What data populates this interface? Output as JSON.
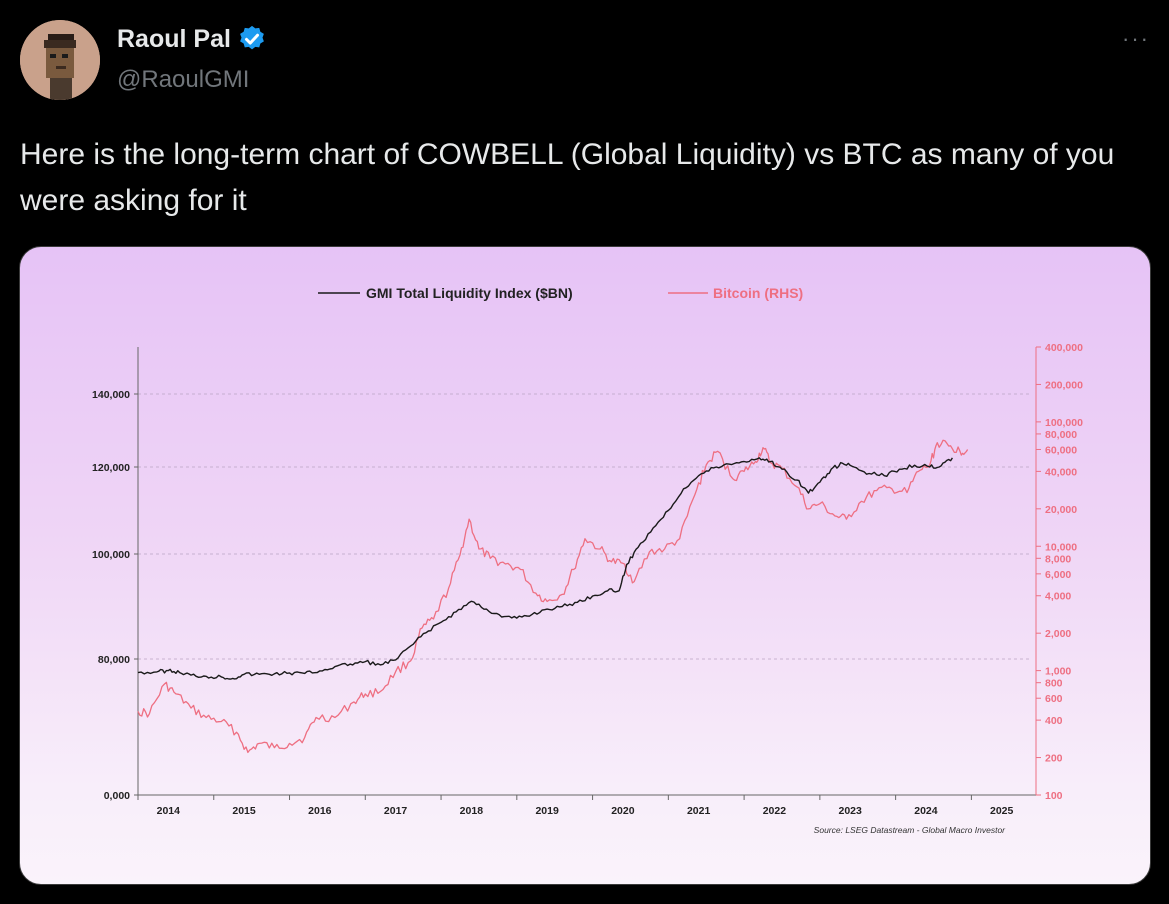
{
  "tweet": {
    "display_name": "Raoul Pal",
    "handle": "@RaoulGMI",
    "more_label": "···",
    "text": "Here is the long-term chart of COWBELL (Global Liquidity) vs BTC as many of you were asking for it"
  },
  "colors": {
    "gmi_line": "#1a1a1a",
    "btc_line": "#ee6f82",
    "verified": "#1d9bf0"
  },
  "chart_data": {
    "type": "line",
    "legend": [
      "GMI Total Liquidity Index ($BN)",
      "Bitcoin (RHS)"
    ],
    "source": "Source: LSEG Datastream - Global Macro Investor",
    "x_ticks": [
      "2014",
      "2015",
      "2016",
      "2017",
      "2018",
      "2019",
      "2020",
      "2021",
      "2022",
      "2023",
      "2024",
      "2025"
    ],
    "x_range": [
      2013.6,
      2025.4
    ],
    "left_axis": {
      "ticks": [
        {
          "v": 0,
          "label": "0,000"
        },
        {
          "v": 80000,
          "label": "80,000"
        },
        {
          "v": 100000,
          "label": "100,000"
        },
        {
          "v": 120000,
          "label": "120,000"
        },
        {
          "v": 140000,
          "label": "140,000"
        }
      ]
    },
    "right_axis": {
      "scale": "log",
      "range": [
        100,
        400000
      ],
      "ticks": [
        {
          "v": 100,
          "label": "100"
        },
        {
          "v": 200,
          "label": "200"
        },
        {
          "v": 400,
          "label": "400"
        },
        {
          "v": 600,
          "label": "600"
        },
        {
          "v": 800,
          "label": "800"
        },
        {
          "v": 1000,
          "label": "1,000"
        },
        {
          "v": 2000,
          "label": "2,000"
        },
        {
          "v": 4000,
          "label": "4,000"
        },
        {
          "v": 6000,
          "label": "6,000"
        },
        {
          "v": 8000,
          "label": "8,000"
        },
        {
          "v": 10000,
          "label": "10,000"
        },
        {
          "v": 20000,
          "label": "20,000"
        },
        {
          "v": 40000,
          "label": "40,000"
        },
        {
          "v": 60000,
          "label": "60,000"
        },
        {
          "v": 80000,
          "label": "80,000"
        },
        {
          "v": 100000,
          "label": "100,000"
        },
        {
          "v": 200000,
          "label": "200,000"
        },
        {
          "v": 400000,
          "label": "400,000"
        }
      ]
    },
    "series": [
      {
        "name": "GMI Total Liquidity Index ($BN)",
        "axis": "left",
        "points": [
          [
            2013.6,
            72000
          ],
          [
            2013.85,
            72400
          ],
          [
            2014.0,
            73200
          ],
          [
            2014.15,
            72000
          ],
          [
            2014.3,
            70500
          ],
          [
            2014.5,
            69800
          ],
          [
            2014.7,
            69500
          ],
          [
            2014.85,
            68600
          ],
          [
            2015.0,
            71000
          ],
          [
            2015.2,
            71000
          ],
          [
            2015.4,
            71300
          ],
          [
            2015.6,
            71800
          ],
          [
            2015.8,
            71500
          ],
          [
            2016.0,
            73000
          ],
          [
            2016.2,
            75500
          ],
          [
            2016.4,
            77000
          ],
          [
            2016.6,
            78500
          ],
          [
            2016.8,
            76500
          ],
          [
            2017.0,
            79500
          ],
          [
            2017.2,
            82500
          ],
          [
            2017.4,
            85000
          ],
          [
            2017.6,
            87000
          ],
          [
            2017.8,
            89000
          ],
          [
            2018.0,
            91000
          ],
          [
            2018.2,
            89500
          ],
          [
            2018.4,
            88000
          ],
          [
            2018.6,
            87800
          ],
          [
            2018.8,
            88500
          ],
          [
            2019.0,
            89500
          ],
          [
            2019.2,
            90000
          ],
          [
            2019.4,
            90800
          ],
          [
            2019.6,
            92000
          ],
          [
            2019.8,
            93000
          ],
          [
            2019.95,
            93000
          ],
          [
            2020.05,
            98000
          ],
          [
            2020.2,
            101500
          ],
          [
            2020.4,
            106000
          ],
          [
            2020.6,
            110000
          ],
          [
            2020.8,
            115000
          ],
          [
            2021.0,
            118000
          ],
          [
            2021.2,
            119800
          ],
          [
            2021.4,
            120800
          ],
          [
            2021.6,
            121500
          ],
          [
            2021.8,
            122500
          ],
          [
            2021.95,
            121500
          ],
          [
            2022.1,
            119500
          ],
          [
            2022.3,
            117000
          ],
          [
            2022.45,
            114000
          ],
          [
            2022.6,
            116500
          ],
          [
            2022.75,
            119500
          ],
          [
            2022.9,
            121000
          ],
          [
            2023.05,
            120000
          ],
          [
            2023.25,
            118500
          ],
          [
            2023.45,
            118000
          ],
          [
            2023.65,
            119500
          ],
          [
            2023.85,
            120500
          ],
          [
            2024.05,
            120000
          ],
          [
            2024.2,
            120300
          ],
          [
            2024.35,
            122500
          ]
        ]
      },
      {
        "name": "Bitcoin (RHS)",
        "axis": "right",
        "points": [
          [
            2013.6,
            470
          ],
          [
            2013.75,
            450
          ],
          [
            2013.95,
            780
          ],
          [
            2014.1,
            650
          ],
          [
            2014.3,
            500
          ],
          [
            2014.5,
            420
          ],
          [
            2014.7,
            390
          ],
          [
            2014.9,
            320
          ],
          [
            2015.05,
            220
          ],
          [
            2015.2,
            260
          ],
          [
            2015.4,
            240
          ],
          [
            2015.6,
            260
          ],
          [
            2015.8,
            290
          ],
          [
            2015.95,
            420
          ],
          [
            2016.2,
            420
          ],
          [
            2016.45,
            560
          ],
          [
            2016.6,
            650
          ],
          [
            2016.8,
            680
          ],
          [
            2017.0,
            980
          ],
          [
            2017.2,
            1200
          ],
          [
            2017.35,
            2200
          ],
          [
            2017.5,
            2600
          ],
          [
            2017.7,
            4600
          ],
          [
            2017.85,
            8500
          ],
          [
            2017.97,
            16500
          ],
          [
            2018.1,
            9500
          ],
          [
            2018.25,
            8000
          ],
          [
            2018.45,
            7200
          ],
          [
            2018.65,
            6500
          ],
          [
            2018.85,
            4200
          ],
          [
            2019.0,
            3600
          ],
          [
            2019.2,
            4100
          ],
          [
            2019.35,
            6500
          ],
          [
            2019.5,
            11500
          ],
          [
            2019.7,
            9500
          ],
          [
            2019.85,
            7500
          ],
          [
            2020.0,
            7300
          ],
          [
            2020.15,
            5200
          ],
          [
            2020.35,
            9000
          ],
          [
            2020.55,
            9500
          ],
          [
            2020.75,
            11500
          ],
          [
            2020.95,
            26000
          ],
          [
            2021.1,
            45000
          ],
          [
            2021.25,
            58000
          ],
          [
            2021.45,
            35000
          ],
          [
            2021.6,
            40000
          ],
          [
            2021.75,
            48000
          ],
          [
            2021.85,
            62000
          ],
          [
            2021.95,
            47000
          ],
          [
            2022.1,
            42000
          ],
          [
            2022.3,
            30000
          ],
          [
            2022.45,
            20000
          ],
          [
            2022.6,
            22000
          ],
          [
            2022.8,
            17500
          ],
          [
            2022.95,
            16500
          ],
          [
            2023.15,
            23000
          ],
          [
            2023.35,
            28000
          ],
          [
            2023.55,
            29000
          ],
          [
            2023.75,
            27000
          ],
          [
            2023.9,
            40000
          ],
          [
            2024.05,
            45000
          ],
          [
            2024.15,
            68000
          ],
          [
            2024.3,
            64000
          ],
          [
            2024.45,
            58000
          ],
          [
            2024.55,
            60000
          ]
        ]
      }
    ]
  }
}
